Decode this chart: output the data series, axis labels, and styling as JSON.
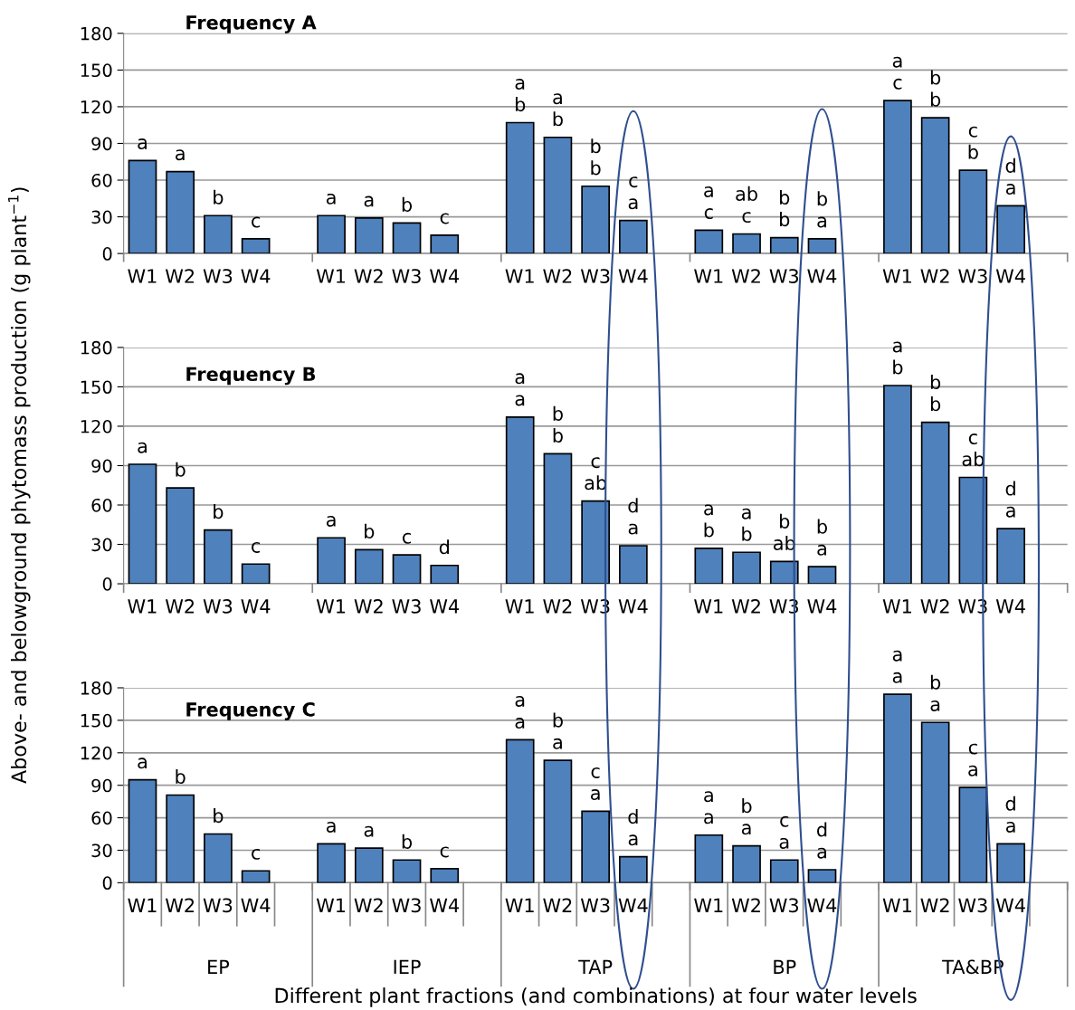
{
  "chart_data": [
    {
      "type": "bar",
      "title": "Frequency A",
      "categories": [
        "W1",
        "W2",
        "W3",
        "W4",
        null,
        "W1",
        "W2",
        "W3",
        "W4",
        null,
        "W1",
        "W2",
        "W3",
        "W4",
        null,
        "W1",
        "W2",
        "W3",
        "W4",
        null,
        "W1",
        "W2",
        "W3",
        "W4",
        null
      ],
      "values": [
        76,
        67,
        31,
        12,
        null,
        31,
        29,
        25,
        15,
        null,
        107,
        95,
        55,
        27,
        null,
        19,
        16,
        13,
        12,
        null,
        125,
        111,
        68,
        39,
        null
      ],
      "value_labels": [
        "a",
        "a",
        "b",
        "c",
        null,
        "a",
        "a",
        "b",
        "c",
        null,
        "a\nb",
        "a\nb",
        "b\nb",
        "c\na",
        null,
        "a\nc",
        "ab\nc",
        "b\nb",
        "b\na",
        null,
        "a\nc",
        "b\nb",
        "c\nb",
        "d\na",
        null
      ],
      "color": "#4f81bd",
      "ylim": [
        0,
        180
      ],
      "yticks": [
        0,
        30,
        60,
        90,
        120,
        150,
        180
      ],
      "grid": "y"
    },
    {
      "type": "bar",
      "title": "Frequency B",
      "ylabel": "Above- and belowground phytomass production (g plant$^{−1}$)",
      "categories": [
        "W1",
        "W2",
        "W3",
        "W4",
        null,
        "W1",
        "W2",
        "W3",
        "W4",
        null,
        "W1",
        "W2",
        "W3",
        "W4",
        null,
        "W1",
        "W2",
        "W3",
        "W4",
        null,
        "W1",
        "W2",
        "W3",
        "W4",
        null
      ],
      "values": [
        91,
        73,
        41,
        15,
        null,
        35,
        26,
        22,
        14,
        null,
        127,
        99,
        63,
        29,
        null,
        27,
        24,
        17,
        13,
        null,
        151,
        123,
        81,
        42,
        null
      ],
      "value_labels": [
        "a",
        "b",
        "b",
        "c",
        null,
        "a",
        "b",
        "c",
        "d",
        null,
        "a\na",
        "b\nb",
        "c\nab",
        "d\na",
        null,
        "a\nb",
        "a\nb",
        "b\nab",
        "b\na",
        null,
        "a\nb",
        "b\nb",
        "c\nab",
        "d\na",
        null
      ],
      "color": "#4f81bd",
      "ylim": [
        0,
        180
      ],
      "yticks": [
        0,
        30,
        60,
        90,
        120,
        150,
        180
      ],
      "grid": "y"
    },
    {
      "type": "bar",
      "title": "Frequency C",
      "xlabel": "Different plant fractions (and combinations) at four water levels",
      "categories": [
        "W1",
        "W2",
        "W3",
        "W4",
        null,
        "W1",
        "W2",
        "W3",
        "W4",
        null,
        "W1",
        "W2",
        "W3",
        "W4",
        null,
        "W1",
        "W2",
        "W3",
        "W4",
        null,
        "W1",
        "W2",
        "W3",
        "W4",
        null
      ],
      "values": [
        95,
        81,
        45,
        11,
        null,
        36,
        32,
        21,
        13,
        null,
        132,
        113,
        66,
        24,
        null,
        44,
        34,
        21,
        12,
        null,
        174,
        148,
        88,
        36,
        null
      ],
      "value_labels": [
        "a",
        "b",
        "b",
        "c",
        null,
        "a",
        "a",
        "b",
        "c",
        null,
        "a\na",
        "b\na",
        "c\na",
        "d\na",
        null,
        "a\na",
        "b\na",
        "c\na",
        "d\na",
        null,
        "a\na",
        "b\na",
        "c\na",
        "d\na",
        null
      ],
      "annotations": [
        "EP",
        "IEP",
        "TAP",
        "BP",
        "TA&BP"
      ],
      "color": "#4f81bd",
      "ylim": [
        0,
        180
      ],
      "yticks": [
        0,
        30,
        60,
        90,
        120,
        150,
        180
      ],
      "grid": "y"
    }
  ]
}
